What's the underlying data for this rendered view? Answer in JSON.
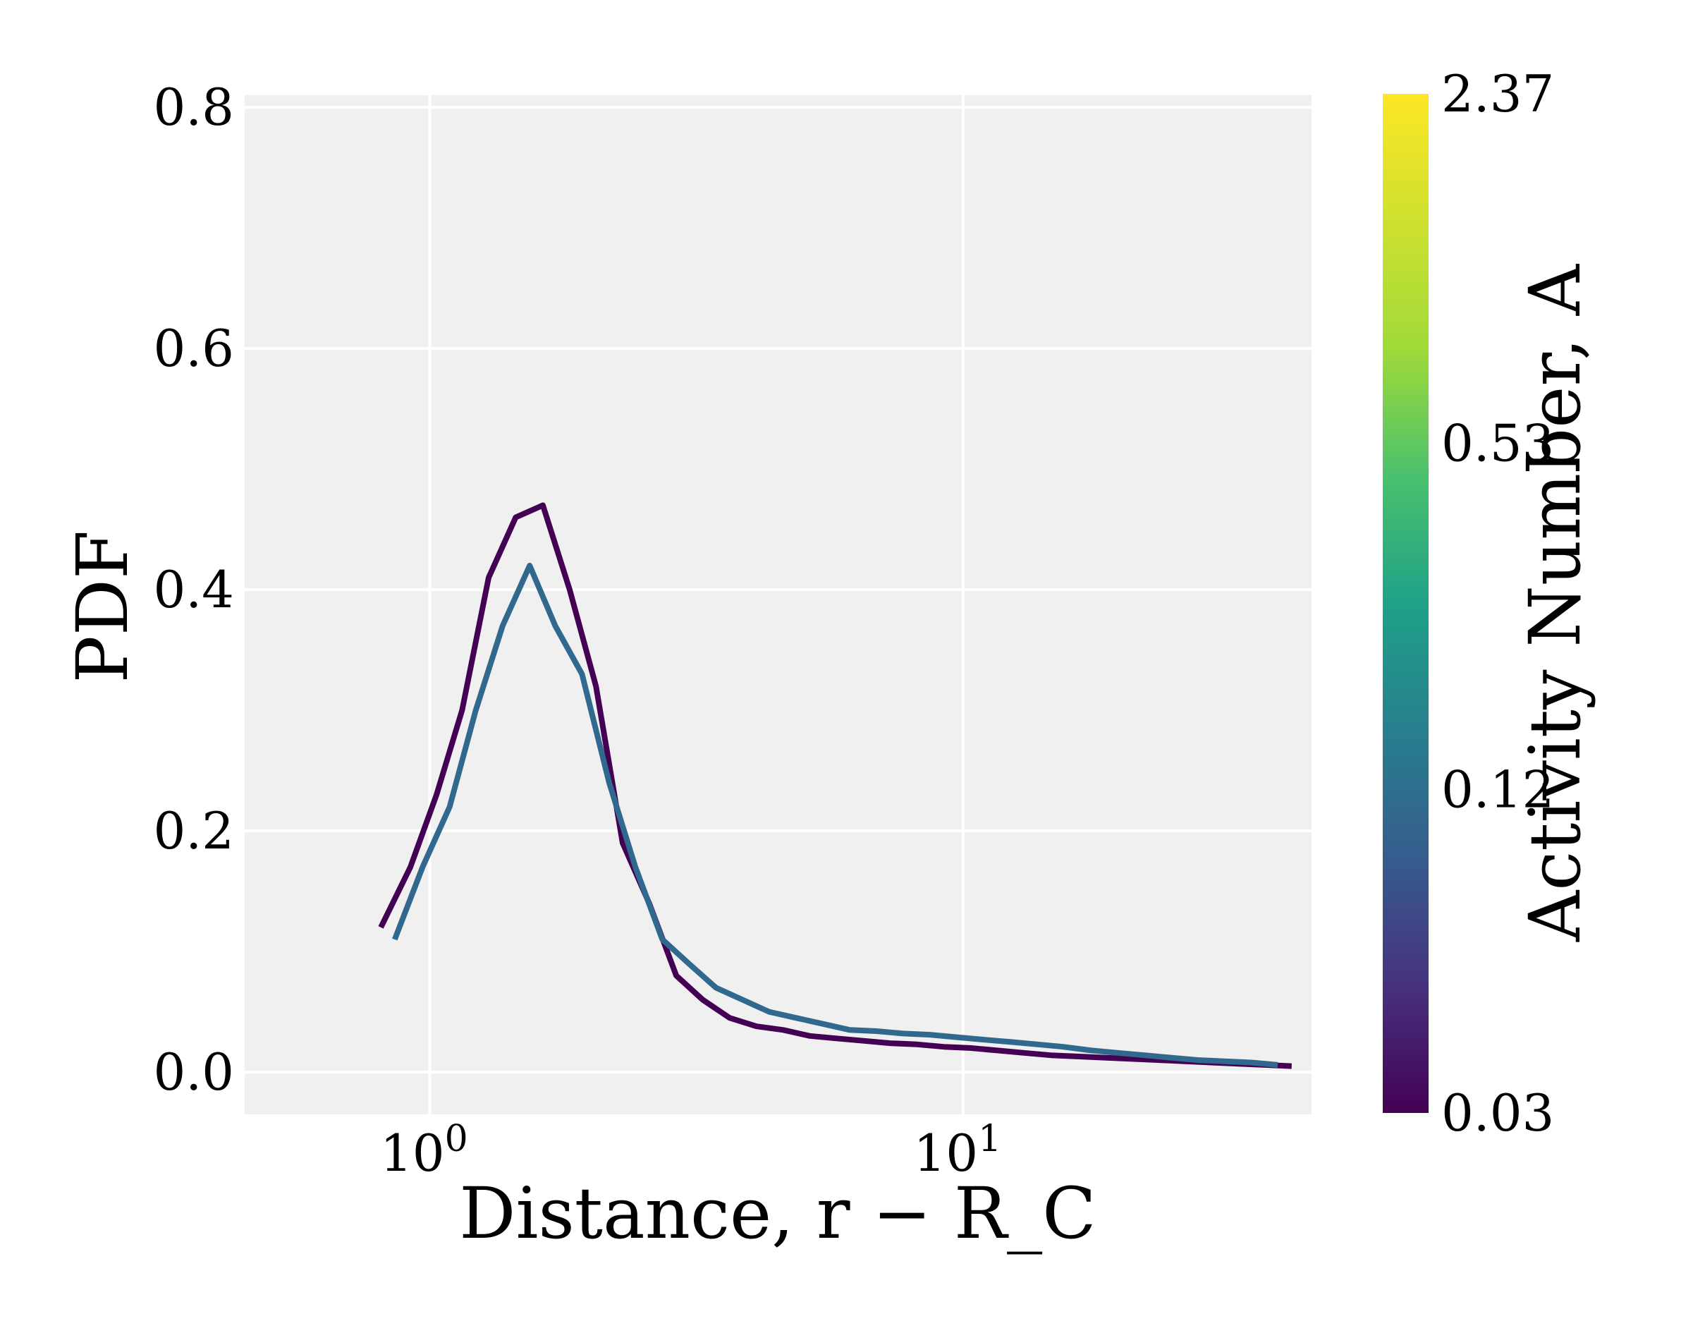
{
  "chart_data": {
    "type": "line",
    "xscale": "log",
    "xlabel": "Distance, r − R_C",
    "ylabel": "PDF",
    "xlim": [
      0.45,
      45
    ],
    "ylim": [
      -0.035,
      0.81
    ],
    "x_ticks": [
      {
        "value": 1,
        "base": "10",
        "exp": "0"
      },
      {
        "value": 10,
        "base": "10",
        "exp": "1"
      }
    ],
    "y_ticks": [
      {
        "value": 0.0,
        "label": "0.0"
      },
      {
        "value": 0.2,
        "label": "0.2"
      },
      {
        "value": 0.4,
        "label": "0.4"
      },
      {
        "value": 0.6,
        "label": "0.6"
      },
      {
        "value": 0.8,
        "label": "0.8"
      }
    ],
    "grid": true,
    "background": "#f0f0f0",
    "colorbar": {
      "label": "Activity Number, A",
      "scale": "log",
      "min": 0.03,
      "max": 2.37,
      "ticks": [
        {
          "value": 0.03,
          "label": "0.03"
        },
        {
          "value": 0.12,
          "label": "0.12"
        },
        {
          "value": 0.53,
          "label": "0.53"
        },
        {
          "value": 2.37,
          "label": "2.37"
        }
      ],
      "colormap": "viridis"
    },
    "series": [
      {
        "color": "#440154",
        "x": [
          0.81,
          0.92,
          1.03,
          1.15,
          1.29,
          1.45,
          1.63,
          1.83,
          2.05,
          2.3,
          2.58,
          2.9,
          3.25,
          3.65,
          4.1,
          4.6,
          5.16,
          5.79,
          6.5,
          7.3,
          8.2,
          9.2,
          10.3,
          11.6,
          13.0,
          14.6,
          16.4,
          18.4,
          20.6,
          23.2,
          26.0,
          29.2,
          32.8,
          36.8,
          41.3
        ],
        "y": [
          0.12,
          0.17,
          0.23,
          0.3,
          0.41,
          0.46,
          0.47,
          0.4,
          0.32,
          0.19,
          0.14,
          0.08,
          0.06,
          0.045,
          0.038,
          0.035,
          0.03,
          0.028,
          0.026,
          0.024,
          0.023,
          0.021,
          0.02,
          0.018,
          0.016,
          0.014,
          0.013,
          0.012,
          0.011,
          0.01,
          0.009,
          0.008,
          0.007,
          0.006,
          0.005
        ]
      },
      {
        "color": "#31688e",
        "x": [
          0.86,
          0.97,
          1.09,
          1.22,
          1.37,
          1.54,
          1.72,
          1.93,
          2.17,
          2.43,
          2.73,
          3.06,
          3.44,
          3.86,
          4.33,
          4.86,
          5.46,
          6.13,
          6.88,
          7.72,
          8.67,
          9.73,
          10.9,
          12.3,
          13.8,
          15.4,
          17.4,
          19.5,
          21.9,
          24.5,
          27.5,
          30.9,
          34.7,
          38.9
        ],
        "y": [
          0.11,
          0.17,
          0.22,
          0.3,
          0.37,
          0.42,
          0.37,
          0.33,
          0.24,
          0.17,
          0.11,
          0.09,
          0.07,
          0.06,
          0.05,
          0.045,
          0.04,
          0.035,
          0.034,
          0.032,
          0.031,
          0.029,
          0.027,
          0.025,
          0.023,
          0.021,
          0.018,
          0.016,
          0.014,
          0.012,
          0.01,
          0.009,
          0.008,
          0.006
        ]
      }
    ]
  }
}
